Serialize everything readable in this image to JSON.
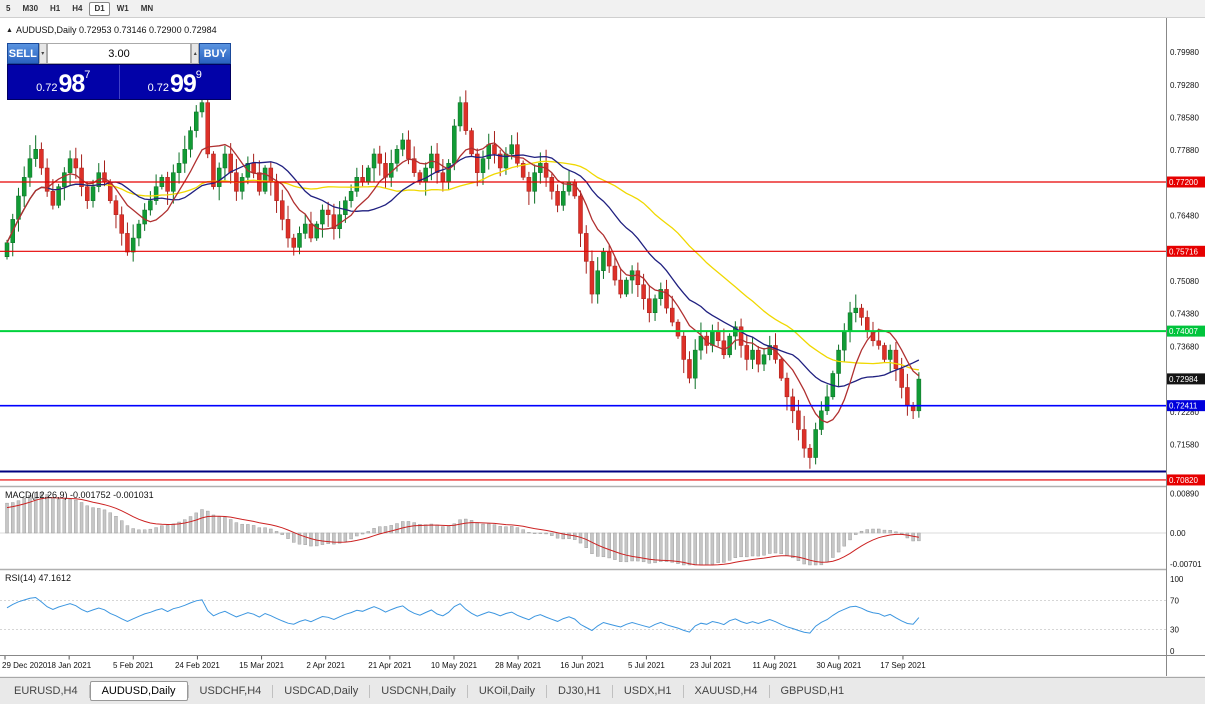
{
  "toolbar": {
    "timeframes": [
      {
        "label": "5",
        "active": false
      },
      {
        "label": "M30",
        "active": false
      },
      {
        "label": "H1",
        "active": false
      },
      {
        "label": "H4",
        "active": false
      },
      {
        "label": "D1",
        "active": true
      },
      {
        "label": "W1",
        "active": false
      },
      {
        "label": "MN",
        "active": false
      }
    ]
  },
  "chart": {
    "collapse_icon": "▲",
    "symbol_label": "AUDUSD,Daily",
    "ohlc": "0.72953 0.73146 0.72900 0.72984"
  },
  "one_click": {
    "sell_label": "SELL",
    "buy_label": "BUY",
    "volume": "3.00",
    "down_icon": "▾",
    "up_icon": "▴",
    "sell_price": {
      "base": "0.72",
      "big": "98",
      "sup": "7"
    },
    "buy_price": {
      "base": "0.72",
      "big": "99",
      "sup": "9"
    }
  },
  "indicators": {
    "macd": {
      "label": "MACD(12,26,9)",
      "values": "-0.001752 -0.001031",
      "axis_labels": [
        "0.00890",
        "0.00",
        "-0.00701"
      ]
    },
    "rsi": {
      "label": "RSI(14)",
      "value": "47.1612",
      "axis_labels": [
        "100",
        "70",
        "30",
        "0"
      ],
      "level_lines": [
        70,
        30
      ]
    }
  },
  "price_axis": {
    "grid_labels": [
      "0.79980",
      "0.79280",
      "0.78580",
      "0.77880",
      "0.76480",
      "0.75080",
      "0.74380",
      "0.73680",
      "0.72280",
      "0.71580"
    ],
    "markers": [
      {
        "text": "0.77200",
        "color": "#e60000"
      },
      {
        "text": "0.75716",
        "color": "#e60000"
      },
      {
        "text": "0.74007",
        "color": "#00c43c"
      },
      {
        "text": "0.72984",
        "color": "#151515"
      },
      {
        "text": "0.72411",
        "color": "#0000dc"
      },
      {
        "text": "0.70820",
        "color": "#e60000"
      }
    ]
  },
  "tabs": [
    {
      "label": "EURUSD,H4",
      "active": false
    },
    {
      "label": "AUDUSD,Daily",
      "active": true
    },
    {
      "label": "USDCHF,H4",
      "active": false
    },
    {
      "label": "USDCAD,Daily",
      "active": false
    },
    {
      "label": "USDCNH,Daily",
      "active": false
    },
    {
      "label": "UKOil,Daily",
      "active": false
    },
    {
      "label": "DJ30,H1",
      "active": false
    },
    {
      "label": "USDX,H1",
      "active": false
    },
    {
      "label": "XAUUSD,H4",
      "active": false
    },
    {
      "label": "GBPUSD,H1",
      "active": false
    }
  ],
  "chart_data": {
    "type": "candlestick",
    "symbol": "AUDUSD",
    "timeframe": "Daily",
    "title": "AUDUSD,Daily 0.72953 0.73146 0.72900 0.72984",
    "current_price": 0.72984,
    "x_labels": [
      "29 Dec 2020",
      "18 Jan 2021",
      "5 Feb 2021",
      "24 Feb 2021",
      "15 Mar 2021",
      "2 Apr 2021",
      "21 Apr 2021",
      "10 May 2021",
      "28 May 2021",
      "16 Jun 2021",
      "5 Jul 2021",
      "23 Jul 2021",
      "11 Aug 2021",
      "30 Aug 2021",
      "17 Sep 2021"
    ],
    "first_open": 0.756,
    "closes": [
      0.759,
      0.764,
      0.769,
      0.773,
      0.777,
      0.779,
      0.775,
      0.77,
      0.767,
      0.771,
      0.774,
      0.777,
      0.775,
      0.771,
      0.768,
      0.771,
      0.774,
      0.772,
      0.768,
      0.765,
      0.761,
      0.757,
      0.76,
      0.763,
      0.766,
      0.768,
      0.771,
      0.773,
      0.77,
      0.774,
      0.776,
      0.779,
      0.783,
      0.787,
      0.789,
      0.778,
      0.771,
      0.775,
      0.778,
      0.774,
      0.77,
      0.773,
      0.776,
      0.774,
      0.77,
      0.775,
      0.772,
      0.768,
      0.764,
      0.76,
      0.758,
      0.761,
      0.763,
      0.76,
      0.763,
      0.766,
      0.765,
      0.762,
      0.765,
      0.768,
      0.77,
      0.773,
      0.772,
      0.775,
      0.778,
      0.776,
      0.773,
      0.776,
      0.779,
      0.781,
      0.777,
      0.774,
      0.772,
      0.775,
      0.778,
      0.774,
      0.772,
      0.776,
      0.784,
      0.789,
      0.783,
      0.778,
      0.774,
      0.777,
      0.78,
      0.778,
      0.775,
      0.778,
      0.78,
      0.776,
      0.773,
      0.77,
      0.774,
      0.776,
      0.773,
      0.77,
      0.767,
      0.77,
      0.772,
      0.769,
      0.761,
      0.755,
      0.748,
      0.753,
      0.757,
      0.754,
      0.751,
      0.748,
      0.751,
      0.753,
      0.75,
      0.747,
      0.744,
      0.747,
      0.749,
      0.745,
      0.742,
      0.739,
      0.734,
      0.73,
      0.736,
      0.739,
      0.737,
      0.74,
      0.738,
      0.735,
      0.739,
      0.741,
      0.737,
      0.734,
      0.736,
      0.733,
      0.735,
      0.737,
      0.734,
      0.73,
      0.726,
      0.723,
      0.719,
      0.715,
      0.713,
      0.719,
      0.723,
      0.726,
      0.731,
      0.736,
      0.74,
      0.744,
      0.745,
      0.743,
      0.74,
      0.738,
      0.737,
      0.734,
      0.736,
      0.732,
      0.728,
      0.724,
      0.723,
      0.7298
    ],
    "wick_high_overrides": {
      "5": 0.782,
      "34": 0.7905,
      "79": 0.7903
    },
    "wick_low_overrides": {
      "21": 0.7562,
      "102": 0.746,
      "119": 0.7289,
      "140": 0.7106
    },
    "levels": [
      {
        "price": 0.772,
        "color": "#e60000",
        "width": 1.2,
        "label": "0.77200"
      },
      {
        "price": 0.75716,
        "color": "#e60000",
        "width": 1.2,
        "label": "0.75716"
      },
      {
        "price": 0.74007,
        "color": "#00d23c",
        "width": 2,
        "label": "0.74007"
      },
      {
        "price": 0.72411,
        "color": "#0000ff",
        "width": 1.6,
        "label": "0.72411"
      },
      {
        "price": 0.71,
        "color": "#000080",
        "width": 2,
        "label": ""
      },
      {
        "price": 0.7082,
        "color": "#e60000",
        "width": 1.2,
        "label": "0.70820"
      }
    ],
    "moving_averages": [
      {
        "period": 34,
        "color": "#f0d800"
      },
      {
        "period": 18,
        "color": "#202080"
      },
      {
        "period": 8,
        "color": "#b03030"
      }
    ],
    "macd_params": [
      12,
      26,
      9
    ],
    "rsi_period": 14
  }
}
